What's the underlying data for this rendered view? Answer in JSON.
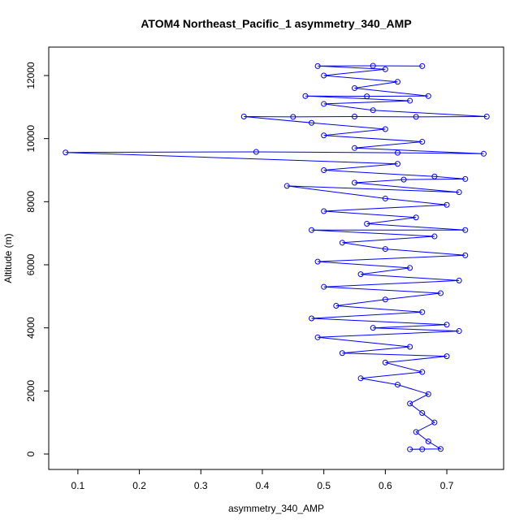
{
  "chart_data": {
    "type": "line-points",
    "title": "ATOM4 Northeast_Pacific_1 asymmetry_340_AMP",
    "x_label": "asymmetry_340_AMP",
    "y_label": "Altitude (m)",
    "color": "#0000ff",
    "xlim": [
      0.0526,
      0.7924
    ],
    "ylim": [
      -489,
      12901
    ],
    "xticks": [
      0.1,
      0.2,
      0.3,
      0.4,
      0.5,
      0.6,
      0.7
    ],
    "yticks": [
      0,
      2000,
      4000,
      6000,
      8000,
      10000,
      12000
    ],
    "x": [
      0.66,
      0.64,
      0.69,
      0.67,
      0.65,
      0.68,
      0.66,
      0.64,
      0.67,
      0.62,
      0.56,
      0.66,
      0.6,
      0.7,
      0.53,
      0.64,
      0.49,
      0.72,
      0.58,
      0.7,
      0.48,
      0.66,
      0.52,
      0.6,
      0.69,
      0.5,
      0.72,
      0.56,
      0.64,
      0.49,
      0.73,
      0.6,
      0.53,
      0.68,
      0.48,
      0.73,
      0.57,
      0.65,
      0.5,
      0.7,
      0.6,
      0.44,
      0.72,
      0.55,
      0.63,
      0.73,
      0.68,
      0.5,
      0.62,
      0.08,
      0.39,
      0.62,
      0.76,
      0.55,
      0.66,
      0.5,
      0.6,
      0.48,
      0.37,
      0.45,
      0.55,
      0.65,
      0.765,
      0.58,
      0.5,
      0.64,
      0.47,
      0.57,
      0.67,
      0.55,
      0.62,
      0.5,
      0.6,
      0.49,
      0.58,
      0.66
    ],
    "values": [
      150,
      150,
      160,
      400,
      700,
      1000,
      1300,
      1600,
      1900,
      2200,
      2400,
      2600,
      2900,
      3100,
      3200,
      3400,
      3700,
      3900,
      4000,
      4100,
      4300,
      4500,
      4700,
      4900,
      5100,
      5300,
      5500,
      5700,
      5900,
      6100,
      6300,
      6500,
      6700,
      6900,
      7100,
      7100,
      7300,
      7500,
      7700,
      7900,
      8100,
      8500,
      8300,
      8600,
      8700,
      8720,
      8800,
      9000,
      9200,
      9560,
      9580,
      9550,
      9520,
      9700,
      9900,
      10100,
      10300,
      10500,
      10700,
      10690,
      10700,
      10690,
      10700,
      10900,
      11100,
      11200,
      11350,
      11340,
      11350,
      11600,
      11800,
      12000,
      12200,
      12300,
      12310,
      12300
    ]
  }
}
